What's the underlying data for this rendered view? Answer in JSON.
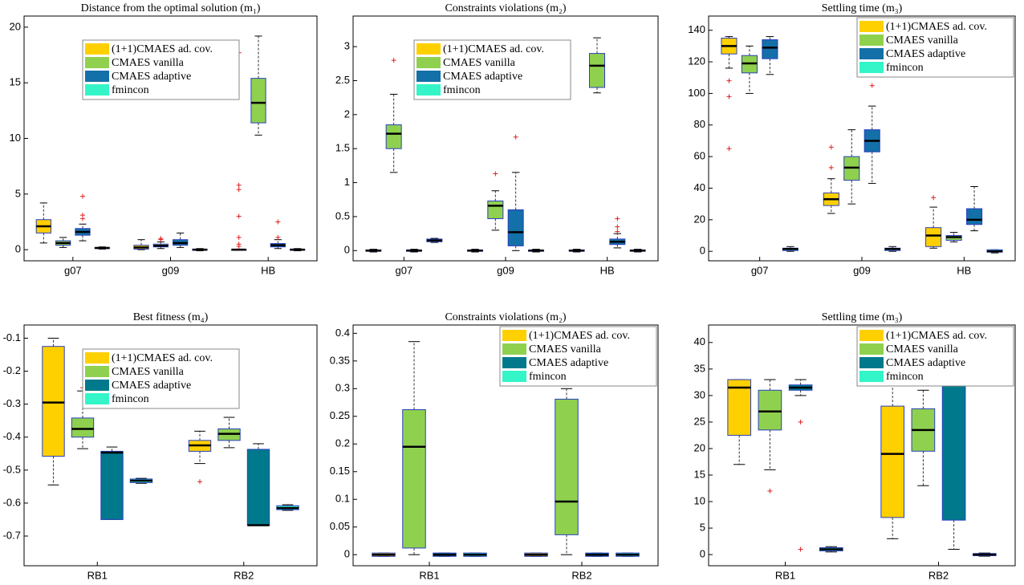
{
  "chart_data": [
    {
      "type": "box",
      "title": "Distance from the optimal solution (m₁)",
      "categories": [
        "g07",
        "g09",
        "HB"
      ],
      "ylim": [
        -1,
        21
      ],
      "yticks": [
        0,
        5,
        10,
        15,
        20
      ],
      "legend": "upper center",
      "series": [
        {
          "name": "(1+1)CMAES ad. cov.",
          "color": "#ffd000",
          "boxes": [
            {
              "whislo": 0.6,
              "q1": 1.5,
              "med": 2.1,
              "q3": 2.7,
              "whishi": 4.2,
              "fliers": []
            },
            {
              "whislo": 0,
              "q1": 0.05,
              "med": 0.2,
              "q3": 0.4,
              "whishi": 0.9,
              "fliers": []
            },
            {
              "whislo": -0.05,
              "q1": -0.02,
              "med": 0,
              "q3": 0.02,
              "whishi": 0.05,
              "fliers": [
                17.7,
                5.8,
                5.4,
                3,
                1.1,
                0.5,
                0.3
              ]
            }
          ]
        },
        {
          "name": "CMAES vanilla",
          "color": "#8fd14f",
          "boxes": [
            {
              "whislo": 0.2,
              "q1": 0.4,
              "med": 0.6,
              "q3": 0.8,
              "whishi": 1.1,
              "fliers": []
            },
            {
              "whislo": 0.1,
              "q1": 0.25,
              "med": 0.35,
              "q3": 0.5,
              "whishi": 0.7,
              "fliers": [
                1.0,
                0.9
              ]
            },
            {
              "whislo": 10.3,
              "q1": 11.4,
              "med": 13.2,
              "q3": 15.4,
              "whishi": 19.2,
              "fliers": []
            }
          ]
        },
        {
          "name": "CMAES adaptive",
          "color": "#1470a8",
          "boxes": [
            {
              "whislo": 0.8,
              "q1": 1.3,
              "med": 1.6,
              "q3": 1.9,
              "whishi": 2.3,
              "fliers": [
                4.8,
                3.1,
                2.8
              ]
            },
            {
              "whislo": 0.2,
              "q1": 0.4,
              "med": 0.6,
              "q3": 0.9,
              "whishi": 1.5,
              "fliers": []
            },
            {
              "whislo": 0.1,
              "q1": 0.25,
              "med": 0.4,
              "q3": 0.55,
              "whishi": 0.9,
              "fliers": [
                2.5,
                1.1
              ]
            }
          ]
        },
        {
          "name": "fmincon",
          "color": "#33f5c8",
          "boxes": [
            {
              "whislo": 0.05,
              "q1": 0.1,
              "med": 0.15,
              "q3": 0.2,
              "whishi": 0.25,
              "fliers": []
            },
            {
              "whislo": -0.1,
              "q1": -0.05,
              "med": 0,
              "q3": 0.05,
              "whishi": 0.1,
              "fliers": []
            },
            {
              "whislo": -0.1,
              "q1": -0.05,
              "med": 0,
              "q3": 0.05,
              "whishi": 0.1,
              "fliers": []
            }
          ]
        }
      ]
    },
    {
      "type": "box",
      "title": "Constraints violations (m₂)",
      "categories": [
        "g07",
        "g09",
        "HB"
      ],
      "ylim": [
        -0.15,
        3.45
      ],
      "yticks": [
        0,
        0.5,
        1,
        1.5,
        2,
        2.5,
        3
      ],
      "legend": "upper center",
      "series": [
        {
          "name": "(1+1)CMAES ad. cov.",
          "color": "#ffd000",
          "boxes": [
            {
              "whislo": -0.02,
              "q1": -0.01,
              "med": 0,
              "q3": 0.01,
              "whishi": 0.02,
              "fliers": []
            },
            {
              "whislo": -0.02,
              "q1": -0.01,
              "med": 0,
              "q3": 0.01,
              "whishi": 0.02,
              "fliers": []
            },
            {
              "whislo": -0.02,
              "q1": -0.01,
              "med": 0,
              "q3": 0.01,
              "whishi": 0.02,
              "fliers": []
            }
          ]
        },
        {
          "name": "CMAES vanilla",
          "color": "#8fd14f",
          "boxes": [
            {
              "whislo": 1.15,
              "q1": 1.5,
              "med": 1.72,
              "q3": 1.85,
              "whishi": 2.3,
              "fliers": [
                2.8
              ]
            },
            {
              "whislo": 0.3,
              "q1": 0.47,
              "med": 0.66,
              "q3": 0.73,
              "whishi": 0.88,
              "fliers": [
                1.13
              ]
            },
            {
              "whislo": 2.32,
              "q1": 2.4,
              "med": 2.72,
              "q3": 2.9,
              "whishi": 3.13,
              "fliers": []
            }
          ]
        },
        {
          "name": "CMAES adaptive",
          "color": "#1470a8",
          "boxes": [
            {
              "whislo": -0.02,
              "q1": -0.01,
              "med": 0,
              "q3": 0.01,
              "whishi": 0.02,
              "fliers": []
            },
            {
              "whislo": 0,
              "q1": 0.07,
              "med": 0.27,
              "q3": 0.6,
              "whishi": 1.15,
              "fliers": [
                1.67
              ]
            },
            {
              "whislo": 0.04,
              "q1": 0.09,
              "med": 0.13,
              "q3": 0.17,
              "whishi": 0.25,
              "fliers": [
                0.47,
                0.35,
                0.28
              ]
            }
          ]
        },
        {
          "name": "fmincon",
          "color": "#33f5c8",
          "boxes": [
            {
              "whislo": 0.12,
              "q1": 0.13,
              "med": 0.15,
              "q3": 0.17,
              "whishi": 0.18,
              "fliers": []
            },
            {
              "whislo": -0.02,
              "q1": -0.01,
              "med": 0,
              "q3": 0.01,
              "whishi": 0.02,
              "fliers": []
            },
            {
              "whislo": -0.02,
              "q1": -0.01,
              "med": 0,
              "q3": 0.01,
              "whishi": 0.02,
              "fliers": []
            }
          ]
        }
      ]
    },
    {
      "type": "box",
      "title": "Settling time (m₃)",
      "categories": [
        "g07",
        "g09",
        "HB"
      ],
      "ylim": [
        -6,
        149
      ],
      "yticks": [
        0,
        20,
        40,
        60,
        80,
        100,
        120,
        140
      ],
      "legend": "upper right",
      "series": [
        {
          "name": "(1+1)CMAES ad. cov.",
          "color": "#ffd000",
          "boxes": [
            {
              "whislo": 116,
              "q1": 125,
              "med": 130,
              "q3": 135,
              "whishi": 136,
              "fliers": [
                108,
                98,
                65
              ]
            },
            {
              "whislo": 24,
              "q1": 29,
              "med": 33,
              "q3": 37,
              "whishi": 46,
              "fliers": [
                66,
                53
              ]
            },
            {
              "whislo": 2,
              "q1": 3,
              "med": 10,
              "q3": 15,
              "whishi": 28,
              "fliers": [
                34
              ]
            }
          ]
        },
        {
          "name": "CMAES vanilla",
          "color": "#8fd14f",
          "boxes": [
            {
              "whislo": 100,
              "q1": 113,
              "med": 119,
              "q3": 124,
              "whishi": 130,
              "fliers": []
            },
            {
              "whislo": 30,
              "q1": 45,
              "med": 53,
              "q3": 60,
              "whishi": 77,
              "fliers": []
            },
            {
              "whislo": 6,
              "q1": 7,
              "med": 9,
              "q3": 10,
              "whishi": 12,
              "fliers": []
            }
          ]
        },
        {
          "name": "CMAES adaptive",
          "color": "#1470a8",
          "boxes": [
            {
              "whislo": 112,
              "q1": 122,
              "med": 129,
              "q3": 134,
              "whishi": 136,
              "fliers": []
            },
            {
              "whislo": 43,
              "q1": 63,
              "med": 70,
              "q3": 77,
              "whishi": 92,
              "fliers": [
                105
              ]
            },
            {
              "whislo": 13,
              "q1": 17,
              "med": 20,
              "q3": 27,
              "whishi": 41,
              "fliers": []
            }
          ]
        },
        {
          "name": "fmincon",
          "color": "#33f5c8",
          "boxes": [
            {
              "whislo": 0,
              "q1": 0.5,
              "med": 1.5,
              "q3": 2,
              "whishi": 3,
              "fliers": []
            },
            {
              "whislo": 0,
              "q1": 0.5,
              "med": 1.5,
              "q3": 2,
              "whishi": 3,
              "fliers": []
            },
            {
              "whislo": -1,
              "q1": -0.5,
              "med": 0,
              "q3": 1,
              "whishi": 1,
              "fliers": []
            }
          ]
        }
      ]
    },
    {
      "type": "box",
      "title": "Best fitness (m₄)",
      "categories": [
        "RB1",
        "RB2"
      ],
      "ylim": [
        -0.79,
        -0.06
      ],
      "yticks": [
        -0.7,
        -0.6,
        -0.5,
        -0.4,
        -0.3,
        -0.2,
        -0.1
      ],
      "legend": "upper center",
      "series": [
        {
          "name": "(1+1)CMAES ad. cov.",
          "color": "#ffd000",
          "boxes": [
            {
              "whislo": -0.545,
              "q1": -0.458,
              "med": -0.295,
              "q3": -0.125,
              "whishi": -0.1,
              "fliers": []
            },
            {
              "whislo": -0.48,
              "q1": -0.443,
              "med": -0.425,
              "q3": -0.41,
              "whishi": -0.382,
              "fliers": [
                -0.535
              ]
            }
          ]
        },
        {
          "name": "CMAES vanilla",
          "color": "#8fd14f",
          "boxes": [
            {
              "whislo": -0.435,
              "q1": -0.4,
              "med": -0.375,
              "q3": -0.342,
              "whishi": -0.26,
              "fliers": [
                -0.25
              ]
            },
            {
              "whislo": -0.432,
              "q1": -0.41,
              "med": -0.39,
              "q3": -0.375,
              "whishi": -0.34,
              "fliers": [
                -0.273
              ]
            }
          ]
        },
        {
          "name": "CMAES adaptive",
          "color": "#00798c",
          "boxes": [
            {
              "whislo": -0.65,
              "q1": -0.65,
              "med": -0.447,
              "q3": -0.443,
              "whishi": -0.43,
              "fliers": []
            },
            {
              "whislo": -0.667,
              "q1": -0.667,
              "med": -0.667,
              "q3": -0.437,
              "whishi": -0.42,
              "fliers": []
            }
          ]
        },
        {
          "name": "fmincon",
          "color": "#33f5c8",
          "boxes": [
            {
              "whislo": -0.54,
              "q1": -0.538,
              "med": -0.532,
              "q3": -0.527,
              "whishi": -0.525,
              "fliers": []
            },
            {
              "whislo": -0.622,
              "q1": -0.62,
              "med": -0.615,
              "q3": -0.608,
              "whishi": -0.605,
              "fliers": []
            }
          ]
        }
      ]
    },
    {
      "type": "box",
      "title": "Constraints violations (m₂)",
      "categories": [
        "RB1",
        "RB2"
      ],
      "ylim": [
        -0.02,
        0.415
      ],
      "yticks": [
        0,
        0.05,
        0.1,
        0.15,
        0.2,
        0.25,
        0.3,
        0.35,
        0.4
      ],
      "legend": "upper right",
      "series": [
        {
          "name": "(1+1)CMAES ad. cov.",
          "color": "#ffd000",
          "boxes": [
            {
              "whislo": -0.003,
              "q1": -0.003,
              "med": 0,
              "q3": 0.003,
              "whishi": 0.003,
              "fliers": []
            },
            {
              "whislo": -0.003,
              "q1": -0.003,
              "med": 0,
              "q3": 0.003,
              "whishi": 0.003,
              "fliers": []
            }
          ]
        },
        {
          "name": "CMAES vanilla",
          "color": "#8fd14f",
          "boxes": [
            {
              "whislo": 0,
              "q1": 0.012,
              "med": 0.195,
              "q3": 0.262,
              "whishi": 0.385,
              "fliers": []
            },
            {
              "whislo": 0,
              "q1": 0.036,
              "med": 0.096,
              "q3": 0.281,
              "whishi": 0.3,
              "fliers": []
            }
          ]
        },
        {
          "name": "CMAES adaptive",
          "color": "#00798c",
          "boxes": [
            {
              "whislo": -0.003,
              "q1": -0.003,
              "med": 0,
              "q3": 0.003,
              "whishi": 0.003,
              "fliers": []
            },
            {
              "whislo": -0.003,
              "q1": -0.003,
              "med": 0,
              "q3": 0.003,
              "whishi": 0.003,
              "fliers": []
            }
          ]
        },
        {
          "name": "fmincon",
          "color": "#33f5c8",
          "boxes": [
            {
              "whislo": -0.003,
              "q1": -0.003,
              "med": 0,
              "q3": 0.003,
              "whishi": 0.003,
              "fliers": []
            },
            {
              "whislo": -0.003,
              "q1": -0.003,
              "med": 0,
              "q3": 0.003,
              "whishi": 0.003,
              "fliers": []
            }
          ]
        }
      ]
    },
    {
      "type": "box",
      "title": "Settling time (m₃)",
      "categories": [
        "RB1",
        "RB2"
      ],
      "ylim": [
        -2.1,
        43.3
      ],
      "yticks": [
        0,
        5,
        10,
        15,
        20,
        25,
        30,
        35,
        40
      ],
      "legend": "upper right",
      "series": [
        {
          "name": "(1+1)CMAES ad. cov.",
          "color": "#ffd000",
          "boxes": [
            {
              "whislo": 17,
              "q1": 22.5,
              "med": 31.5,
              "q3": 33,
              "whishi": 33,
              "fliers": []
            },
            {
              "whislo": 3,
              "q1": 7,
              "med": 19,
              "q3": 28,
              "whishi": 32,
              "fliers": []
            }
          ]
        },
        {
          "name": "CMAES vanilla",
          "color": "#8fd14f",
          "boxes": [
            {
              "whislo": 16,
              "q1": 23.5,
              "med": 27,
              "q3": 31,
              "whishi": 33,
              "fliers": [
                12
              ]
            },
            {
              "whislo": 13,
              "q1": 19.5,
              "med": 23.5,
              "q3": 27.5,
              "whishi": 31,
              "fliers": []
            }
          ]
        },
        {
          "name": "CMAES adaptive",
          "color": "#00798c",
          "boxes": [
            {
              "whislo": 30,
              "q1": 31,
              "med": 31.5,
              "q3": 32,
              "whishi": 33,
              "fliers": [
                25,
                1
              ]
            },
            {
              "whislo": 1,
              "q1": 6.5,
              "med": 32,
              "q3": 32,
              "whishi": 33,
              "fliers": []
            }
          ]
        },
        {
          "name": "fmincon",
          "color": "#33f5c8",
          "boxes": [
            {
              "whislo": 0.5,
              "q1": 0.7,
              "med": 1,
              "q3": 1.3,
              "whishi": 1.5,
              "fliers": []
            },
            {
              "whislo": -0.3,
              "q1": -0.2,
              "med": 0,
              "q3": 0.2,
              "whishi": 0.3,
              "fliers": []
            }
          ]
        }
      ]
    }
  ]
}
